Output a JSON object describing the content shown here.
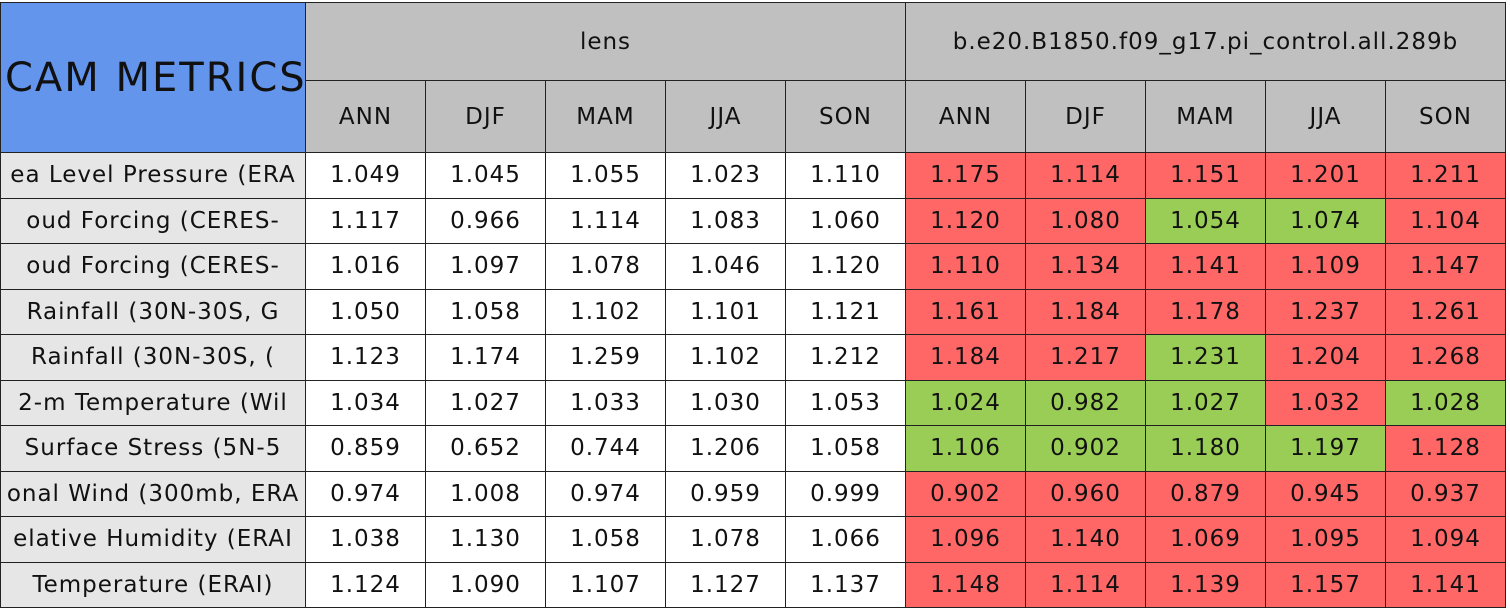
{
  "header": {
    "title": "CAM METRICS"
  },
  "groups": [
    {
      "name": "lens",
      "columns": [
        "ANN",
        "DJF",
        "MAM",
        "JJA",
        "SON"
      ]
    },
    {
      "name": "b.e20.B1850.f09_g17.pi_control.all.289b",
      "columns": [
        "ANN",
        "DJF",
        "MAM",
        "JJA",
        "SON"
      ]
    }
  ],
  "rows": [
    {
      "label": "ea Level Pressure (ERA",
      "values": [
        "1.049",
        "1.045",
        "1.055",
        "1.023",
        "1.110",
        "1.175",
        "1.114",
        "1.151",
        "1.201",
        "1.211"
      ],
      "fills": [
        "#ffffff",
        "#ffffff",
        "#ffffff",
        "#ffffff",
        "#ffffff",
        "#ff6666",
        "#ff6666",
        "#ff6666",
        "#ff6666",
        "#ff6666"
      ]
    },
    {
      "label": "oud Forcing (CERES-",
      "values": [
        "1.117",
        "0.966",
        "1.114",
        "1.083",
        "1.060",
        "1.120",
        "1.080",
        "1.054",
        "1.074",
        "1.104"
      ],
      "fills": [
        "#ffffff",
        "#ffffff",
        "#ffffff",
        "#ffffff",
        "#ffffff",
        "#ff6666",
        "#ff6666",
        "#9acd55",
        "#9acd55",
        "#ff6666"
      ]
    },
    {
      "label": "oud Forcing (CERES-",
      "values": [
        "1.016",
        "1.097",
        "1.078",
        "1.046",
        "1.120",
        "1.110",
        "1.134",
        "1.141",
        "1.109",
        "1.147"
      ],
      "fills": [
        "#ffffff",
        "#ffffff",
        "#ffffff",
        "#ffffff",
        "#ffffff",
        "#ff6666",
        "#ff6666",
        "#ff6666",
        "#ff6666",
        "#ff6666"
      ]
    },
    {
      "label": "Rainfall (30N-30S, G",
      "values": [
        "1.050",
        "1.058",
        "1.102",
        "1.101",
        "1.121",
        "1.161",
        "1.184",
        "1.178",
        "1.237",
        "1.261"
      ],
      "fills": [
        "#ffffff",
        "#ffffff",
        "#ffffff",
        "#ffffff",
        "#ffffff",
        "#ff6666",
        "#ff6666",
        "#ff6666",
        "#ff6666",
        "#ff6666"
      ]
    },
    {
      "label": "Rainfall (30N-30S, (",
      "values": [
        "1.123",
        "1.174",
        "1.259",
        "1.102",
        "1.212",
        "1.184",
        "1.217",
        "1.231",
        "1.204",
        "1.268"
      ],
      "fills": [
        "#ffffff",
        "#ffffff",
        "#ffffff",
        "#ffffff",
        "#ffffff",
        "#ff6666",
        "#ff6666",
        "#9acd55",
        "#ff6666",
        "#ff6666"
      ]
    },
    {
      "label": "2-m Temperature (Wil",
      "values": [
        "1.034",
        "1.027",
        "1.033",
        "1.030",
        "1.053",
        "1.024",
        "0.982",
        "1.027",
        "1.032",
        "1.028"
      ],
      "fills": [
        "#ffffff",
        "#ffffff",
        "#ffffff",
        "#ffffff",
        "#ffffff",
        "#9acd55",
        "#9acd55",
        "#9acd55",
        "#ff6666",
        "#9acd55"
      ]
    },
    {
      "label": "Surface Stress (5N-5",
      "values": [
        "0.859",
        "0.652",
        "0.744",
        "1.206",
        "1.058",
        "1.106",
        "0.902",
        "1.180",
        "1.197",
        "1.128"
      ],
      "fills": [
        "#ffffff",
        "#ffffff",
        "#ffffff",
        "#ffffff",
        "#ffffff",
        "#9acd55",
        "#9acd55",
        "#9acd55",
        "#9acd55",
        "#ff6666"
      ]
    },
    {
      "label": "onal Wind (300mb, ERA",
      "values": [
        "0.974",
        "1.008",
        "0.974",
        "0.959",
        "0.999",
        "0.902",
        "0.960",
        "0.879",
        "0.945",
        "0.937"
      ],
      "fills": [
        "#ffffff",
        "#ffffff",
        "#ffffff",
        "#ffffff",
        "#ffffff",
        "#ff6666",
        "#ff6666",
        "#ff6666",
        "#ff6666",
        "#ff6666"
      ]
    },
    {
      "label": "elative Humidity (ERAI",
      "values": [
        "1.038",
        "1.130",
        "1.058",
        "1.078",
        "1.066",
        "1.096",
        "1.140",
        "1.069",
        "1.095",
        "1.094"
      ],
      "fills": [
        "#ffffff",
        "#ffffff",
        "#ffffff",
        "#ffffff",
        "#ffffff",
        "#ff6666",
        "#ff6666",
        "#ff6666",
        "#ff6666",
        "#ff6666"
      ]
    },
    {
      "label": "Temperature (ERAI)",
      "values": [
        "1.124",
        "1.090",
        "1.107",
        "1.127",
        "1.137",
        "1.148",
        "1.114",
        "1.139",
        "1.157",
        "1.141"
      ],
      "fills": [
        "#ffffff",
        "#ffffff",
        "#ffffff",
        "#ffffff",
        "#ffffff",
        "#ff6666",
        "#ff6666",
        "#ff6666",
        "#ff6666",
        "#ff6666"
      ]
    }
  ]
}
